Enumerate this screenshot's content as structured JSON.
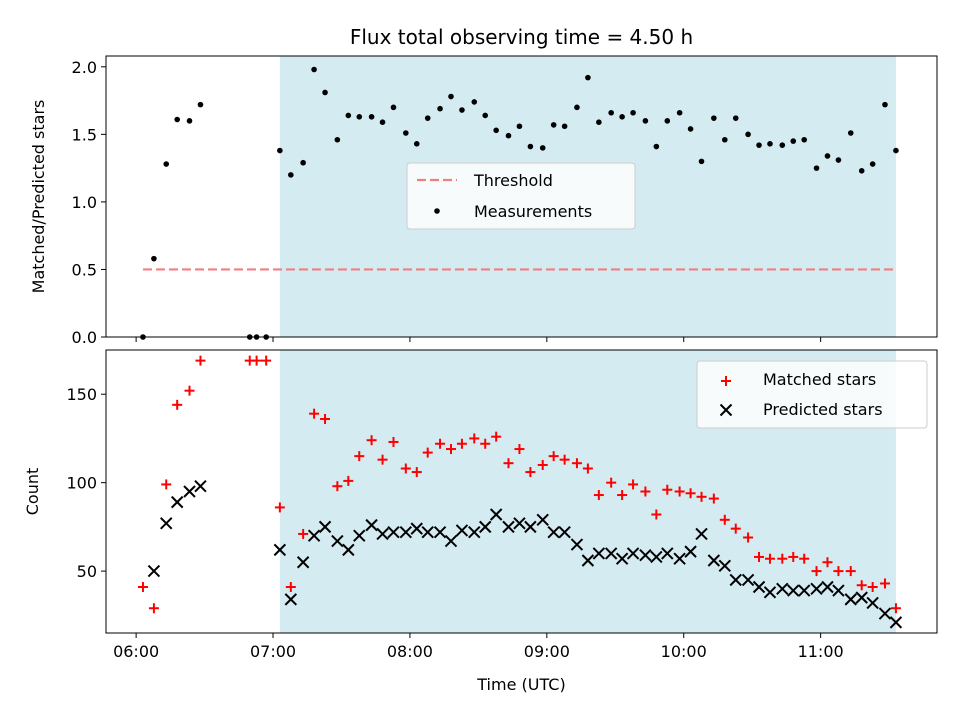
{
  "chart_data": [
    {
      "type": "scatter",
      "title": "Flux total observing time = 4.50 h",
      "xlabel": "",
      "ylabel": "Matched/Predicted stars",
      "ylim": [
        0,
        2.08
      ],
      "yticks": [
        0.0,
        0.5,
        1.0,
        1.5,
        2.0
      ],
      "ytick_labels": [
        "0.0",
        "0.5",
        "1.0",
        "1.5",
        "2.0"
      ],
      "xlim": [
        5.78,
        11.85
      ],
      "shaded_x_range": [
        7.05,
        11.55
      ],
      "shaded_color": "#d4ebf1",
      "legend": {
        "position": "center",
        "entries": [
          "Threshold",
          "Measurements"
        ]
      },
      "threshold": {
        "name": "Threshold",
        "value": 0.5,
        "x_range": [
          6.05,
          11.55
        ],
        "color": "#f08080"
      },
      "series": [
        {
          "name": "Measurements",
          "marker": "dot",
          "color": "#000000",
          "points": [
            [
              6.05,
              0.0
            ],
            [
              6.13,
              0.58
            ],
            [
              6.22,
              1.28
            ],
            [
              6.3,
              1.61
            ],
            [
              6.39,
              1.6
            ],
            [
              6.47,
              1.72
            ],
            [
              6.83,
              0.0
            ],
            [
              6.88,
              0.0
            ],
            [
              6.95,
              0.0
            ],
            [
              7.05,
              1.38
            ],
            [
              7.13,
              1.2
            ],
            [
              7.22,
              1.29
            ],
            [
              7.3,
              1.98
            ],
            [
              7.38,
              1.81
            ],
            [
              7.47,
              1.46
            ],
            [
              7.55,
              1.64
            ],
            [
              7.63,
              1.63
            ],
            [
              7.72,
              1.63
            ],
            [
              7.8,
              1.59
            ],
            [
              7.88,
              1.7
            ],
            [
              7.97,
              1.51
            ],
            [
              8.05,
              1.43
            ],
            [
              8.13,
              1.62
            ],
            [
              8.22,
              1.69
            ],
            [
              8.3,
              1.78
            ],
            [
              8.38,
              1.68
            ],
            [
              8.47,
              1.74
            ],
            [
              8.55,
              1.64
            ],
            [
              8.63,
              1.53
            ],
            [
              8.72,
              1.49
            ],
            [
              8.8,
              1.56
            ],
            [
              8.88,
              1.41
            ],
            [
              8.97,
              1.4
            ],
            [
              9.05,
              1.57
            ],
            [
              9.13,
              1.56
            ],
            [
              9.22,
              1.7
            ],
            [
              9.3,
              1.92
            ],
            [
              9.38,
              1.59
            ],
            [
              9.47,
              1.66
            ],
            [
              9.55,
              1.63
            ],
            [
              9.63,
              1.66
            ],
            [
              9.72,
              1.6
            ],
            [
              9.8,
              1.41
            ],
            [
              9.88,
              1.6
            ],
            [
              9.97,
              1.66
            ],
            [
              10.05,
              1.54
            ],
            [
              10.13,
              1.3
            ],
            [
              10.22,
              1.62
            ],
            [
              10.3,
              1.46
            ],
            [
              10.38,
              1.62
            ],
            [
              10.47,
              1.5
            ],
            [
              10.55,
              1.42
            ],
            [
              10.63,
              1.43
            ],
            [
              10.72,
              1.42
            ],
            [
              10.8,
              1.45
            ],
            [
              10.88,
              1.46
            ],
            [
              10.97,
              1.25
            ],
            [
              11.05,
              1.34
            ],
            [
              11.13,
              1.31
            ],
            [
              11.22,
              1.51
            ],
            [
              11.3,
              1.23
            ],
            [
              11.38,
              1.28
            ],
            [
              11.47,
              1.72
            ],
            [
              11.55,
              1.38
            ]
          ]
        }
      ]
    },
    {
      "type": "scatter",
      "title": "",
      "xlabel": "Time (UTC)",
      "ylabel": "Count",
      "ylim": [
        15,
        175
      ],
      "yticks": [
        50,
        100,
        150
      ],
      "ytick_labels": [
        "50",
        "100",
        "150"
      ],
      "xlim": [
        5.78,
        11.85
      ],
      "xticks": [
        6,
        7,
        8,
        9,
        10,
        11
      ],
      "xtick_labels": [
        "06:00",
        "07:00",
        "08:00",
        "09:00",
        "10:00",
        "11:00"
      ],
      "shaded_x_range": [
        7.05,
        11.55
      ],
      "shaded_color": "#d4ebf1",
      "legend": {
        "position": "top-right",
        "entries": [
          "Matched stars",
          "Predicted stars"
        ]
      },
      "series": [
        {
          "name": "Matched stars",
          "marker": "plus",
          "color": "#ff0000",
          "points": [
            [
              6.05,
              41
            ],
            [
              6.13,
              29
            ],
            [
              6.22,
              99
            ],
            [
              6.3,
              144
            ],
            [
              6.39,
              152
            ],
            [
              6.47,
              169
            ],
            [
              6.83,
              169
            ],
            [
              6.88,
              169
            ],
            [
              6.95,
              169
            ],
            [
              7.05,
              86
            ],
            [
              7.13,
              41
            ],
            [
              7.22,
              71
            ],
            [
              7.3,
              139
            ],
            [
              7.38,
              136
            ],
            [
              7.47,
              98
            ],
            [
              7.55,
              101
            ],
            [
              7.63,
              115
            ],
            [
              7.72,
              124
            ],
            [
              7.8,
              113
            ],
            [
              7.88,
              123
            ],
            [
              7.97,
              108
            ],
            [
              8.05,
              106
            ],
            [
              8.13,
              117
            ],
            [
              8.22,
              122
            ],
            [
              8.3,
              119
            ],
            [
              8.38,
              122
            ],
            [
              8.47,
              125
            ],
            [
              8.55,
              122
            ],
            [
              8.63,
              126
            ],
            [
              8.72,
              111
            ],
            [
              8.8,
              119
            ],
            [
              8.88,
              106
            ],
            [
              8.97,
              110
            ],
            [
              9.05,
              115
            ],
            [
              9.13,
              113
            ],
            [
              9.22,
              111
            ],
            [
              9.3,
              108
            ],
            [
              9.38,
              93
            ],
            [
              9.47,
              100
            ],
            [
              9.55,
              93
            ],
            [
              9.63,
              99
            ],
            [
              9.72,
              95
            ],
            [
              9.8,
              82
            ],
            [
              9.88,
              96
            ],
            [
              9.97,
              95
            ],
            [
              10.05,
              94
            ],
            [
              10.13,
              92
            ],
            [
              10.22,
              91
            ],
            [
              10.3,
              79
            ],
            [
              10.38,
              74
            ],
            [
              10.47,
              69
            ],
            [
              10.55,
              58
            ],
            [
              10.63,
              57
            ],
            [
              10.72,
              57
            ],
            [
              10.8,
              58
            ],
            [
              10.88,
              57
            ],
            [
              10.97,
              50
            ],
            [
              11.05,
              55
            ],
            [
              11.13,
              50
            ],
            [
              11.22,
              50
            ],
            [
              11.3,
              42
            ],
            [
              11.38,
              41
            ],
            [
              11.47,
              43
            ],
            [
              11.55,
              29
            ]
          ]
        },
        {
          "name": "Predicted stars",
          "marker": "x",
          "color": "#000000",
          "points": [
            [
              6.13,
              50
            ],
            [
              6.22,
              77
            ],
            [
              6.3,
              89
            ],
            [
              6.39,
              95
            ],
            [
              6.47,
              98
            ],
            [
              7.05,
              62
            ],
            [
              7.13,
              34
            ],
            [
              7.22,
              55
            ],
            [
              7.3,
              70
            ],
            [
              7.38,
              75
            ],
            [
              7.47,
              67
            ],
            [
              7.55,
              62
            ],
            [
              7.63,
              70
            ],
            [
              7.72,
              76
            ],
            [
              7.8,
              71
            ],
            [
              7.88,
              72
            ],
            [
              7.97,
              72
            ],
            [
              8.05,
              74
            ],
            [
              8.13,
              72
            ],
            [
              8.22,
              72
            ],
            [
              8.3,
              67
            ],
            [
              8.38,
              73
            ],
            [
              8.47,
              72
            ],
            [
              8.55,
              75
            ],
            [
              8.63,
              82
            ],
            [
              8.72,
              75
            ],
            [
              8.8,
              77
            ],
            [
              8.88,
              75
            ],
            [
              8.97,
              79
            ],
            [
              9.05,
              72
            ],
            [
              9.13,
              72
            ],
            [
              9.22,
              65
            ],
            [
              9.3,
              56
            ],
            [
              9.38,
              60
            ],
            [
              9.47,
              60
            ],
            [
              9.55,
              57
            ],
            [
              9.63,
              60
            ],
            [
              9.72,
              59
            ],
            [
              9.8,
              58
            ],
            [
              9.88,
              60
            ],
            [
              9.97,
              57
            ],
            [
              10.05,
              61
            ],
            [
              10.13,
              71
            ],
            [
              10.22,
              56
            ],
            [
              10.3,
              53
            ],
            [
              10.38,
              45
            ],
            [
              10.47,
              45
            ],
            [
              10.55,
              41
            ],
            [
              10.63,
              38
            ],
            [
              10.72,
              40
            ],
            [
              10.8,
              39
            ],
            [
              10.88,
              39
            ],
            [
              10.97,
              40
            ],
            [
              11.05,
              41
            ],
            [
              11.13,
              39
            ],
            [
              11.22,
              34
            ],
            [
              11.3,
              35
            ],
            [
              11.38,
              32
            ],
            [
              11.47,
              26
            ],
            [
              11.55,
              21
            ]
          ]
        }
      ]
    }
  ]
}
